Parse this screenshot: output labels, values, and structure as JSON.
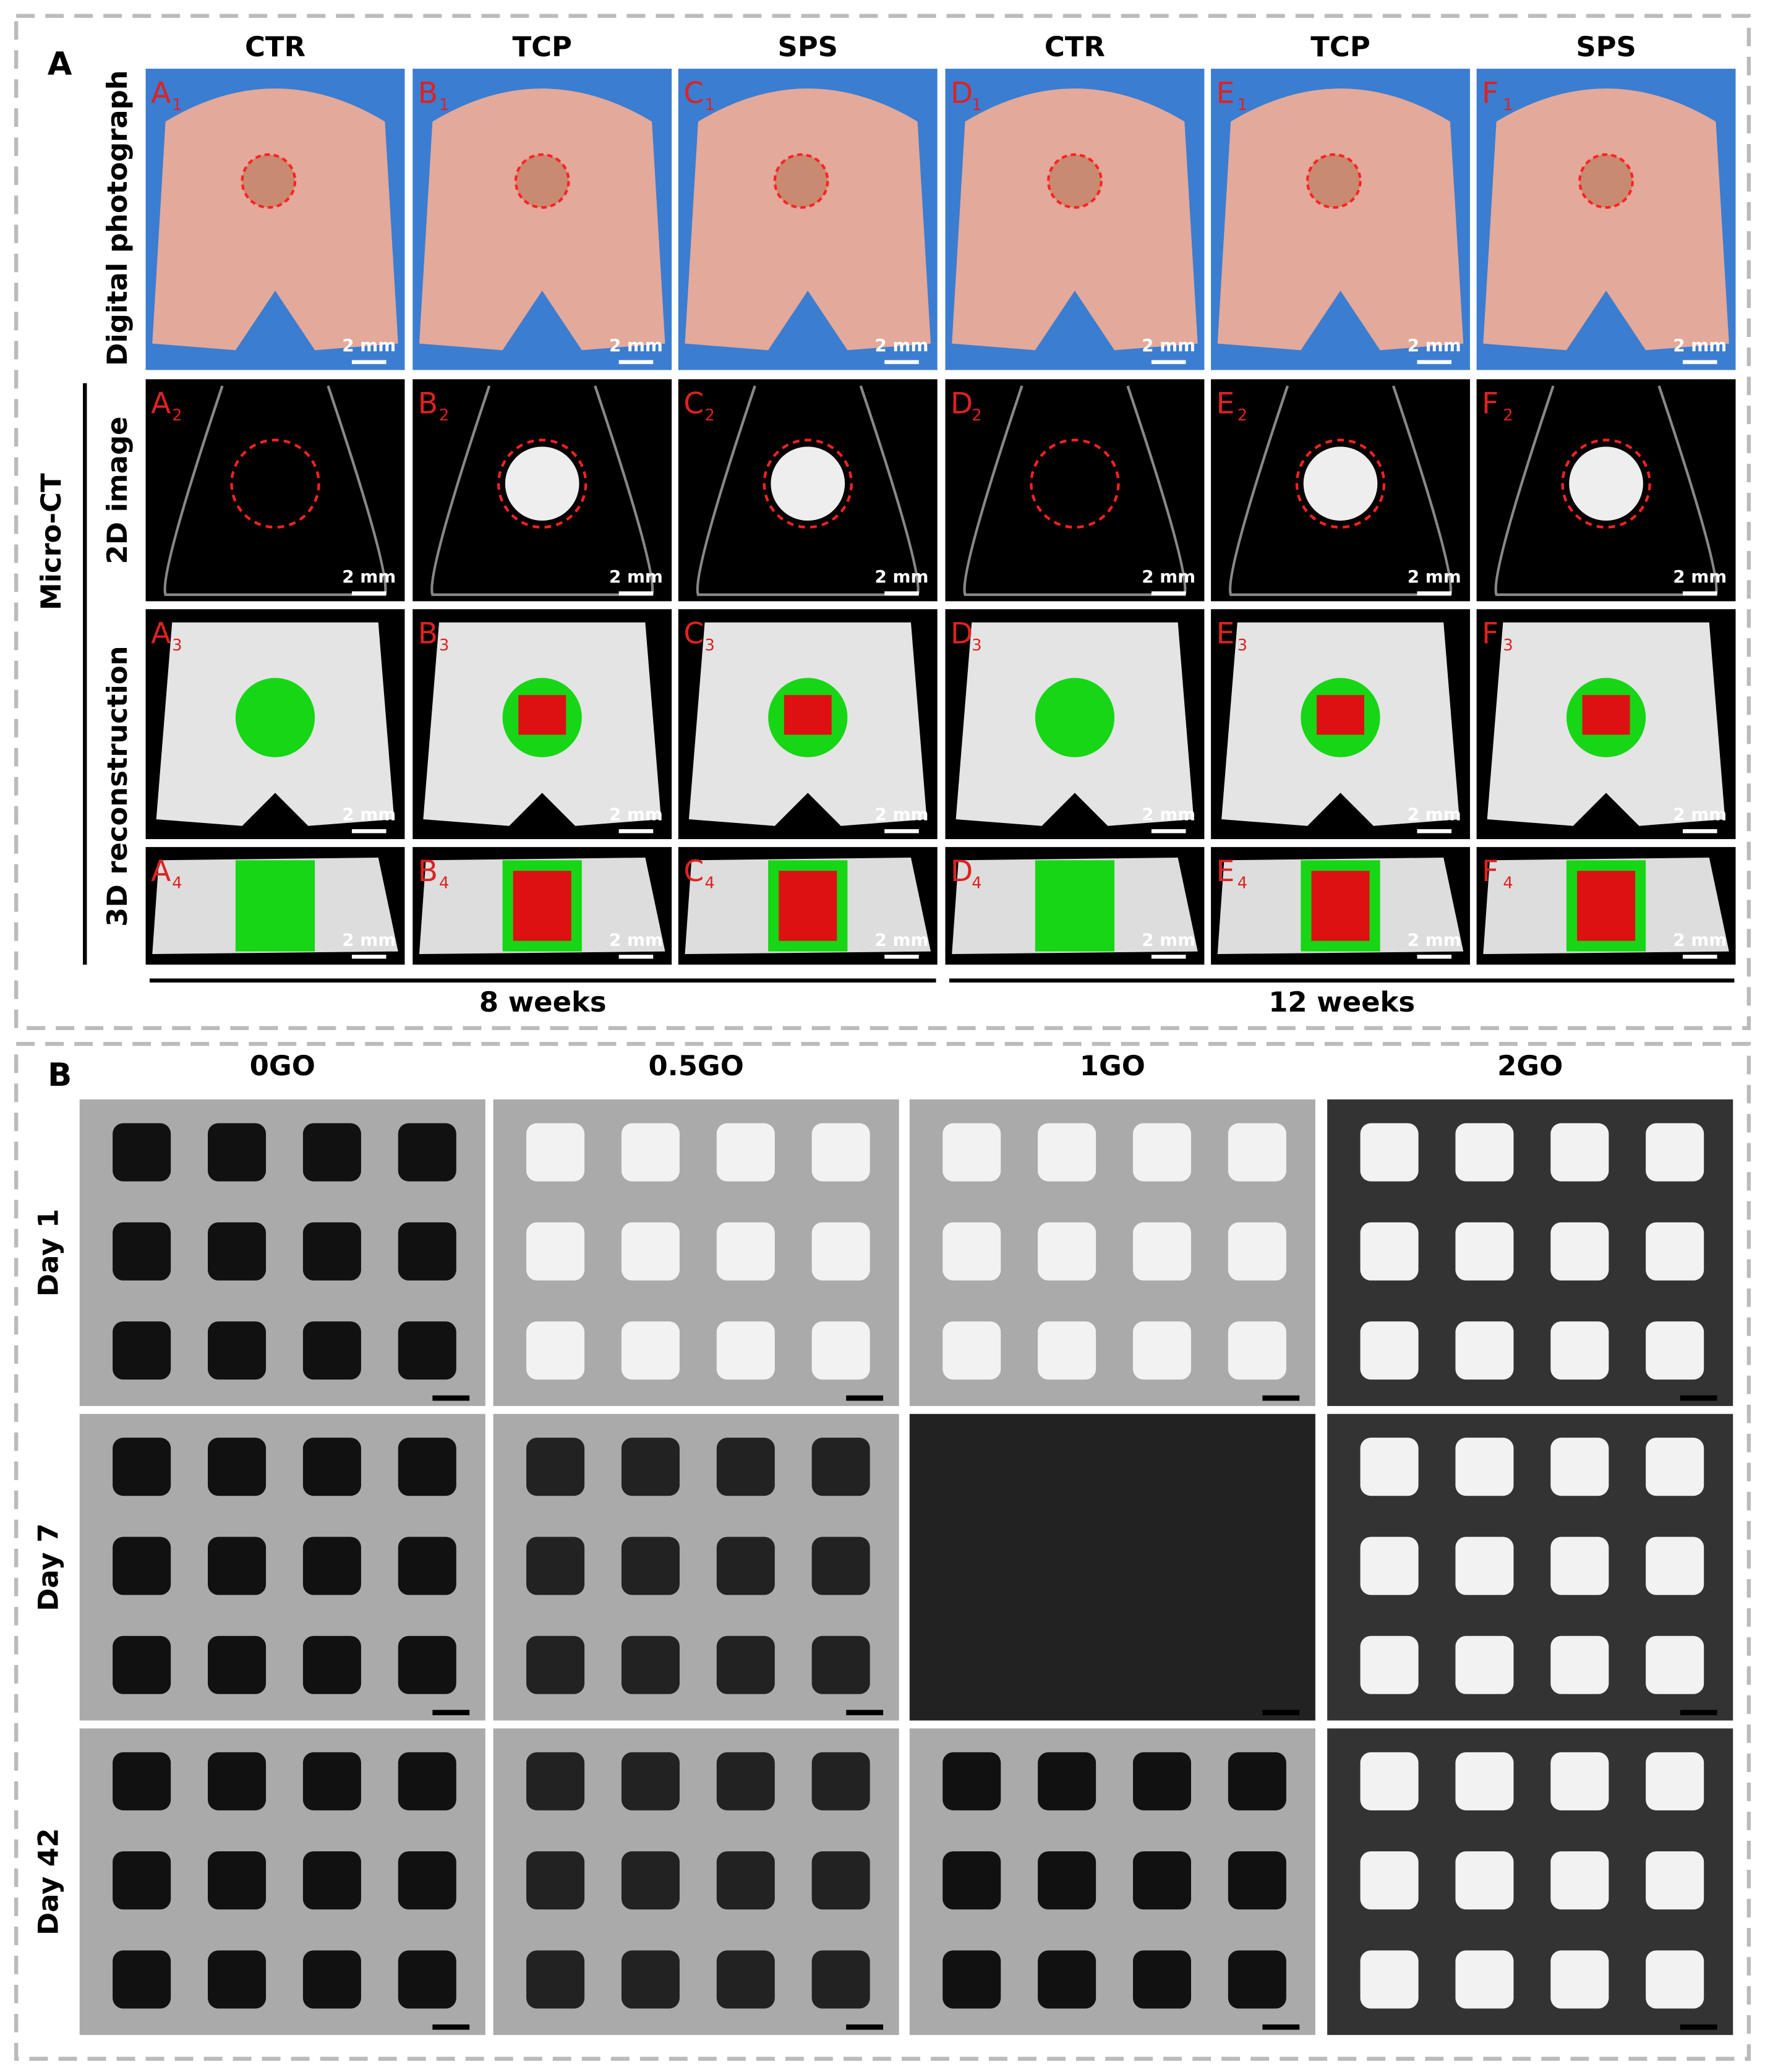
{
  "panel_a": {
    "label": "A",
    "columns": [
      "CTR",
      "TCP",
      "SPS",
      "CTR",
      "TCP",
      "SPS"
    ],
    "row_labels": {
      "photo": "Digital photograph",
      "micro_ct": "Micro-CT",
      "image_2d": "2D image",
      "reconstruction_3d": "3D reconstruction"
    },
    "panel_rows": [
      {
        "letters": [
          "A",
          "B",
          "C",
          "D",
          "E",
          "F"
        ],
        "sub": "1"
      },
      {
        "letters": [
          "A",
          "B",
          "C",
          "D",
          "E",
          "F"
        ],
        "sub": "2"
      },
      {
        "letters": [
          "A",
          "B",
          "C",
          "D",
          "E",
          "F"
        ],
        "sub": "3"
      },
      {
        "letters": [
          "A",
          "B",
          "C",
          "D",
          "E",
          "F"
        ],
        "sub": "4"
      }
    ],
    "scale_bar": "2 mm",
    "periods": [
      "8 weeks",
      "12 weeks"
    ]
  },
  "panel_b": {
    "label": "B",
    "columns": [
      "0GO",
      "0.5GO",
      "1GO",
      "2GO"
    ],
    "rows": [
      "Day 1",
      "Day 7",
      "Day 42"
    ]
  }
}
